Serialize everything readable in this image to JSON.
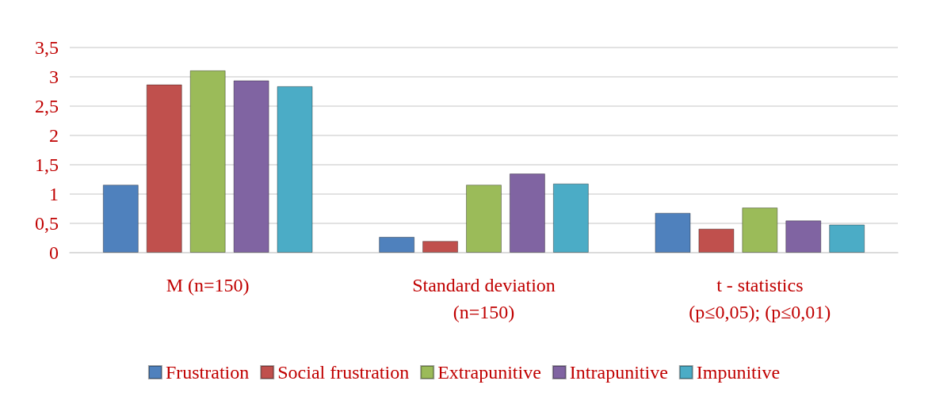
{
  "chart_data": {
    "type": "bar",
    "categories": [
      "M (n=150)",
      "Standard deviation\n(n=150)",
      "t - statistics\n(p≤0,05); (p≤0,01)"
    ],
    "series": [
      {
        "name": "Frustration",
        "color": "#4f81bd",
        "values": [
          1.16,
          0.27,
          0.68
        ]
      },
      {
        "name": "Social frustration",
        "color": "#c0504d",
        "values": [
          2.87,
          0.2,
          0.41
        ]
      },
      {
        "name": "Extrapunitive",
        "color": "#9bbb59",
        "values": [
          3.11,
          1.16,
          0.77
        ]
      },
      {
        "name": "Intrapunitive",
        "color": "#8064a2",
        "values": [
          2.94,
          1.35,
          0.55
        ]
      },
      {
        "name": "Impunitive",
        "color": "#4bacc6",
        "values": [
          2.84,
          1.18,
          0.48
        ]
      }
    ],
    "ylim": [
      0,
      3.5
    ],
    "yticks": [
      0,
      {
        "value": 0.5,
        "label": "0,5"
      },
      1,
      {
        "value": 1.5,
        "label": "1,5"
      },
      2,
      {
        "value": 2.5,
        "label": "2,5"
      },
      3,
      {
        "value": 3.5,
        "label": "3,5"
      }
    ],
    "grid": "y",
    "legend": "bottom"
  }
}
